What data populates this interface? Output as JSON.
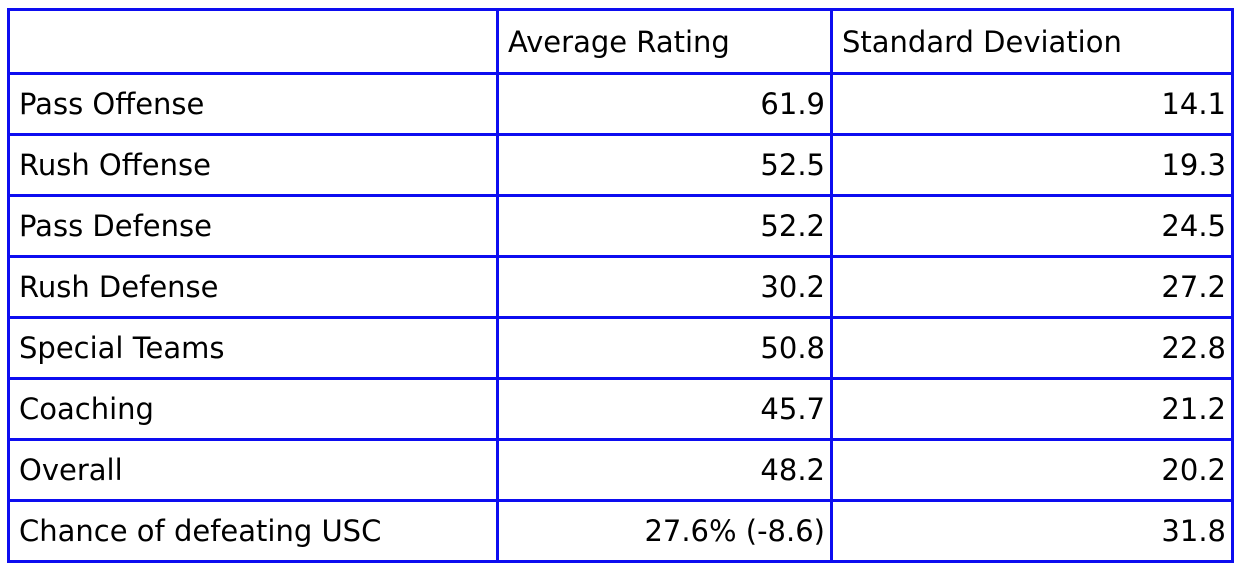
{
  "style": {
    "border_color": "#0d0df0",
    "text_color": "#000000",
    "background_color": "#ffffff"
  },
  "chart_data": {
    "type": "table",
    "columns": [
      "",
      "Average Rating",
      "Standard Deviation"
    ],
    "rows": [
      {
        "label": "Pass Offense",
        "average_rating": "61.9",
        "standard_deviation": "14.1"
      },
      {
        "label": "Rush Offense",
        "average_rating": "52.5",
        "standard_deviation": "19.3"
      },
      {
        "label": "Pass Defense",
        "average_rating": "52.2",
        "standard_deviation": "24.5"
      },
      {
        "label": "Rush Defense",
        "average_rating": "30.2",
        "standard_deviation": "27.2"
      },
      {
        "label": "Special Teams",
        "average_rating": "50.8",
        "standard_deviation": "22.8"
      },
      {
        "label": "Coaching",
        "average_rating": "45.7",
        "standard_deviation": "21.2"
      },
      {
        "label": "Overall",
        "average_rating": "48.2",
        "standard_deviation": "20.2"
      },
      {
        "label": "Chance of defeating USC",
        "average_rating": "27.6% (-8.6)",
        "standard_deviation": "31.8"
      }
    ]
  }
}
